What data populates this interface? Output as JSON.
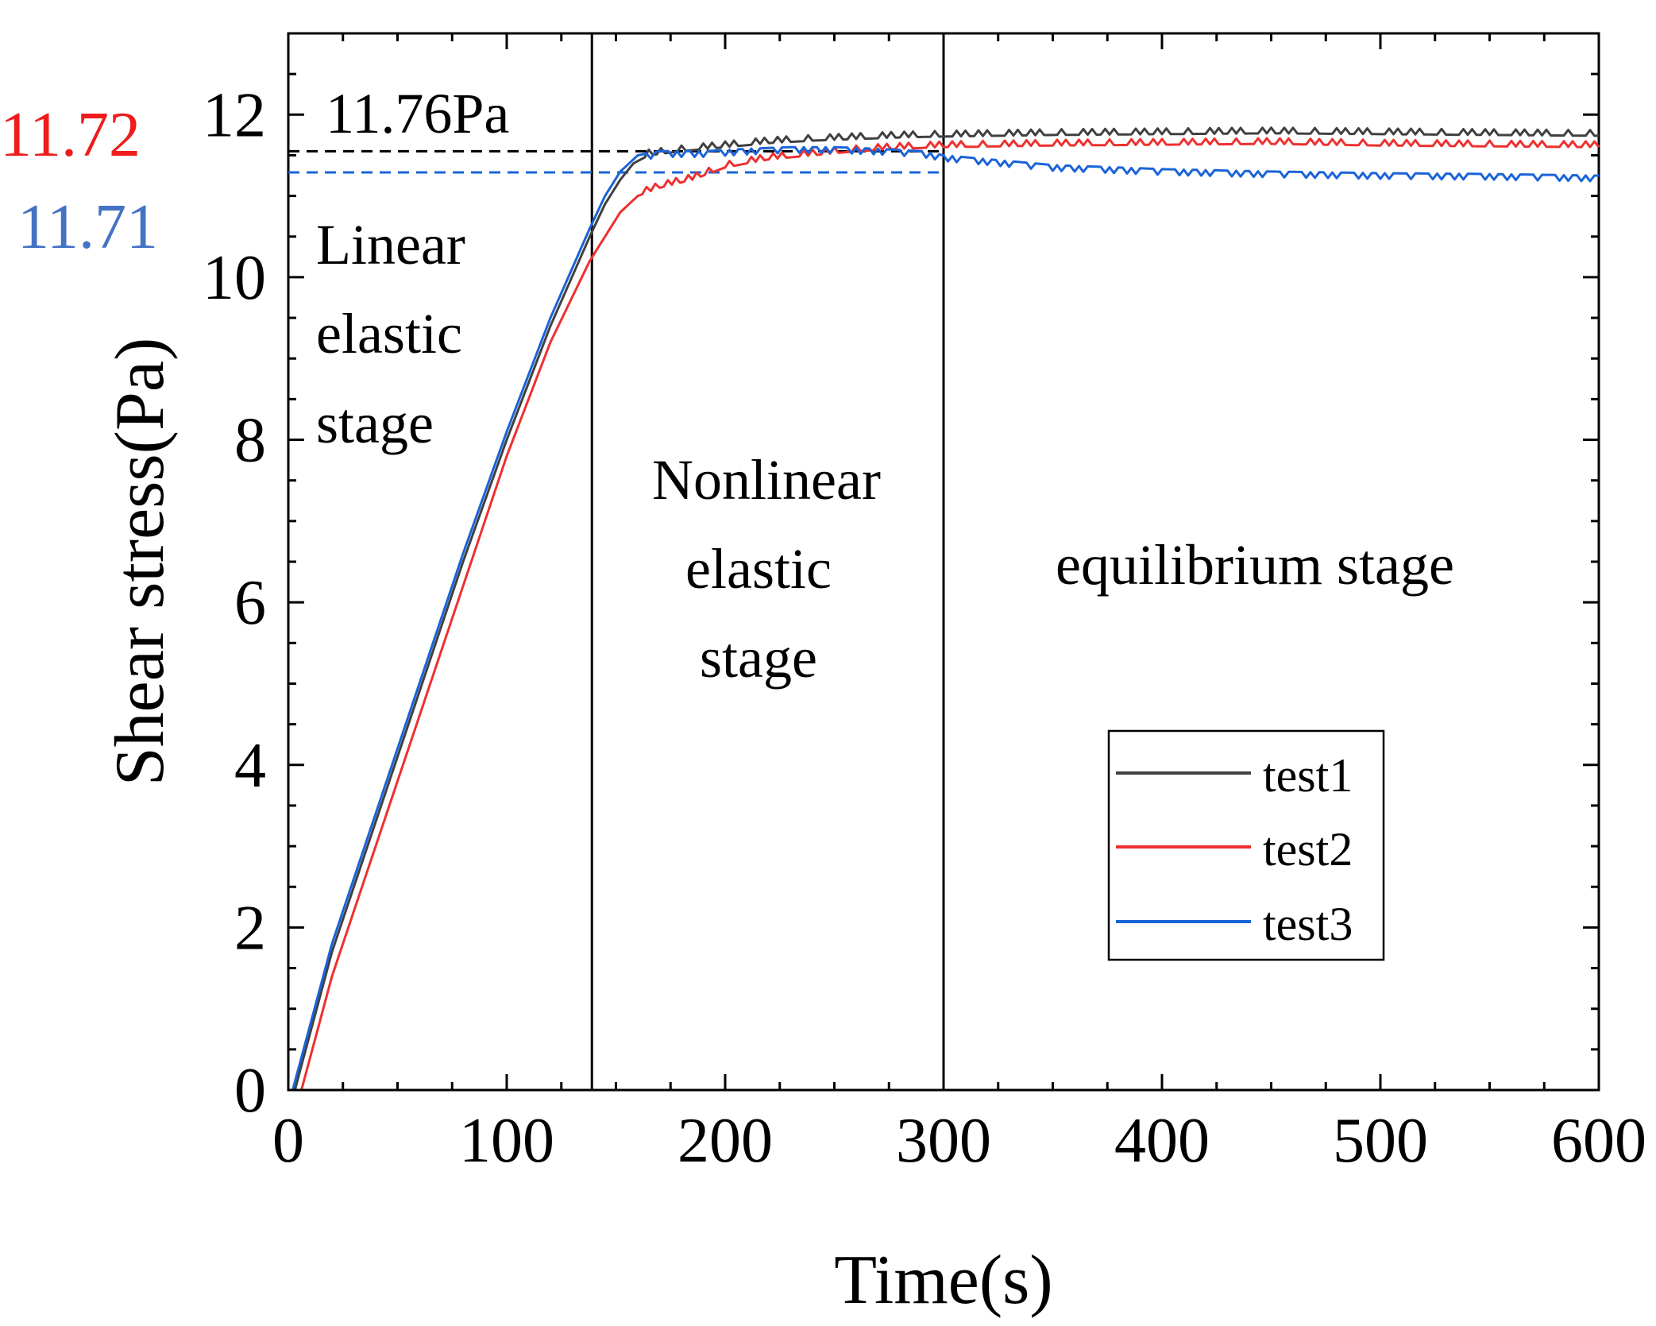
{
  "chart_data": {
    "type": "line",
    "title": "",
    "xlabel": "Time(s)",
    "ylabel": "Shear stress(Pa)",
    "xlim": [
      0,
      600
    ],
    "ylim": [
      0,
      13
    ],
    "xticks": [
      0,
      100,
      200,
      300,
      400,
      500,
      600
    ],
    "yticks": [
      0,
      2,
      4,
      6,
      8,
      10,
      12
    ],
    "xtick_labels": [
      "0",
      "100",
      "200",
      "300",
      "400",
      "500",
      "600"
    ],
    "ytick_labels": [
      "0",
      "2",
      "4",
      "6",
      "8",
      "10",
      "12"
    ],
    "grid": false,
    "legend_position": "bottom-right",
    "series": [
      {
        "name": "test1",
        "color": "#404040",
        "x": [
          0,
          3,
          20,
          40,
          60,
          80,
          100,
          120,
          138,
          145,
          152,
          158,
          165,
          180,
          200,
          220,
          240,
          260,
          280,
          300,
          350,
          400,
          450,
          500,
          550,
          600
        ],
        "y": [
          0,
          0,
          1.7,
          3.3,
          4.9,
          6.5,
          8.0,
          9.4,
          10.5,
          10.9,
          11.2,
          11.4,
          11.5,
          11.55,
          11.6,
          11.65,
          11.68,
          11.7,
          11.72,
          11.73,
          11.75,
          11.76,
          11.77,
          11.76,
          11.75,
          11.74
        ]
      },
      {
        "name": "test2",
        "color": "#ee3030",
        "x": [
          0,
          6,
          20,
          40,
          60,
          80,
          100,
          120,
          138,
          145,
          152,
          160,
          170,
          185,
          200,
          220,
          240,
          260,
          280,
          300,
          350,
          400,
          450,
          500,
          550,
          600
        ],
        "y": [
          0,
          0,
          1.4,
          3.0,
          4.6,
          6.2,
          7.8,
          9.2,
          10.2,
          10.5,
          10.8,
          11.0,
          11.1,
          11.2,
          11.35,
          11.45,
          11.5,
          11.55,
          11.58,
          11.6,
          11.62,
          11.63,
          11.64,
          11.62,
          11.61,
          11.6
        ]
      },
      {
        "name": "test3",
        "color": "#1a64d8",
        "x": [
          0,
          2,
          20,
          40,
          60,
          80,
          100,
          120,
          138,
          145,
          152,
          160,
          170,
          190,
          210,
          230,
          250,
          270,
          290,
          300,
          350,
          400,
          450,
          500,
          550,
          600
        ],
        "y": [
          0,
          0,
          1.8,
          3.4,
          5.0,
          6.6,
          8.1,
          9.5,
          10.6,
          11.0,
          11.3,
          11.5,
          11.55,
          11.55,
          11.58,
          11.6,
          11.6,
          11.58,
          11.55,
          11.5,
          11.38,
          11.33,
          11.3,
          11.28,
          11.27,
          11.25
        ]
      }
    ],
    "reference_lines": [
      {
        "name": "test1-ref",
        "y": 11.55,
        "x_range": [
          0,
          300
        ],
        "color": "#000000",
        "style": "dashed"
      },
      {
        "name": "test2-ref",
        "y": 11.29,
        "x_range": [
          0,
          300
        ],
        "color": "#ee3030",
        "style": "dashed"
      },
      {
        "name": "test3-ref",
        "y": 11.29,
        "x_range": [
          0,
          300
        ],
        "color": "#1a64d8",
        "style": "dashed"
      }
    ],
    "stage_dividers": [
      139,
      300
    ],
    "annotations": {
      "peak_label": "11.76Pa",
      "red_value": "11.72",
      "blue_value": "11.71",
      "stage1": [
        "Linear",
        "elastic",
        "stage"
      ],
      "stage2": [
        "Nonlinear",
        "elastic",
        "stage"
      ],
      "stage3": "equilibrium stage"
    },
    "annotation_colors": {
      "red_value": "#ee1c1c",
      "blue_value": "#4472c4"
    }
  }
}
